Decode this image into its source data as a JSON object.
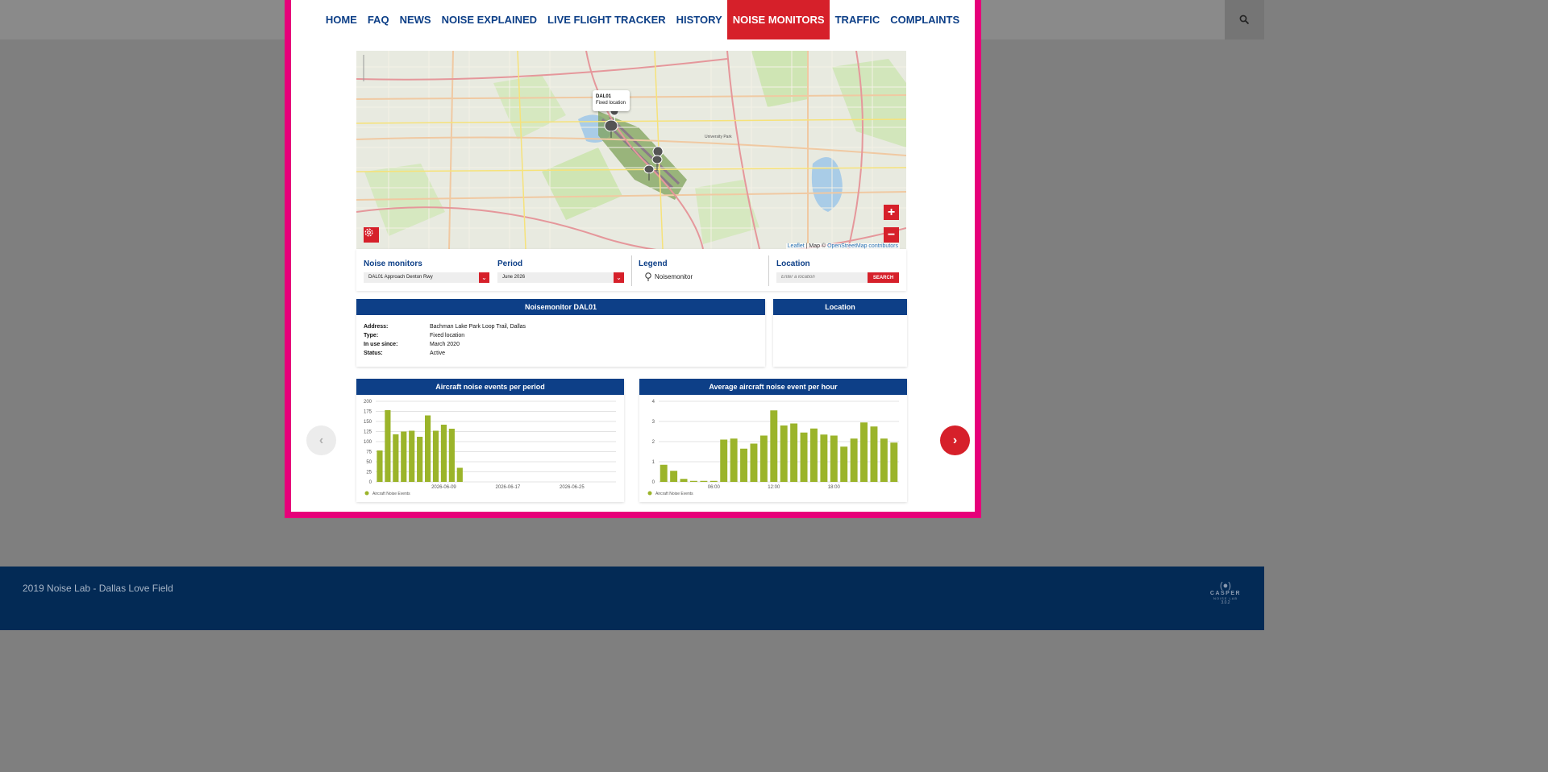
{
  "nav": {
    "items": [
      {
        "label": "HOME"
      },
      {
        "label": "FAQ"
      },
      {
        "label": "NEWS"
      },
      {
        "label": "NOISE EXPLAINED"
      },
      {
        "label": "LIVE FLIGHT TRACKER"
      },
      {
        "label": "HISTORY"
      },
      {
        "label": "NOISE MONITORS",
        "active": true
      },
      {
        "label": "TRAFFIC"
      },
      {
        "label": "COMPLAINTS"
      }
    ],
    "search_icon": "search-icon"
  },
  "map": {
    "popup": {
      "title": "DAL01",
      "subtitle": "Fixed location"
    },
    "zoom_in": "+",
    "zoom_out": "−",
    "attribution": {
      "leaflet": "Leaflet",
      "sep": " | Map © ",
      "osm": "OpenStreetMap contributors"
    },
    "place_label": "University Park"
  },
  "controls": {
    "monitors_label": "Noise monitors",
    "monitors_value": "DAL01 Approach Denton Rwy",
    "period_label": "Period",
    "period_value": "June 2026",
    "legend_label": "Legend",
    "legend_item": "Noisemonitor",
    "location_label": "Location",
    "location_placeholder": "Enter a location",
    "search_button": "SEARCH"
  },
  "monitor_card": {
    "title": "Noisemonitor DAL01",
    "rows": [
      {
        "key": "Address:",
        "value": "Bachman Lake Park Loop Trail, Dallas"
      },
      {
        "key": "Type:",
        "value": "Fixed location"
      },
      {
        "key": "In use since:",
        "value": "March 2020"
      },
      {
        "key": "Status:",
        "value": "Active"
      }
    ]
  },
  "location_card": {
    "title": "Location"
  },
  "chart_data": [
    {
      "type": "bar",
      "title": "Aircraft noise events per period",
      "xlabel": "",
      "ylabel": "",
      "ylim": [
        0,
        200
      ],
      "yticks": [
        0,
        25,
        50,
        75,
        100,
        125,
        150,
        175,
        200
      ],
      "x_tick_labels": [
        "2026-06-09",
        "2026-06-17",
        "2026-06-25"
      ],
      "x_tick_index": [
        9,
        17,
        25
      ],
      "categories": [
        "2026-06-01",
        "2026-06-02",
        "2026-06-03",
        "2026-06-04",
        "2026-06-05",
        "2026-06-06",
        "2026-06-07",
        "2026-06-08",
        "2026-06-09",
        "2026-06-10",
        "2026-06-11",
        "2026-06-12",
        "2026-06-13",
        "2026-06-14",
        "2026-06-15",
        "2026-06-16",
        "2026-06-17",
        "2026-06-18",
        "2026-06-19",
        "2026-06-20",
        "2026-06-21",
        "2026-06-22",
        "2026-06-23",
        "2026-06-24",
        "2026-06-25",
        "2026-06-26",
        "2026-06-27",
        "2026-06-28",
        "2026-06-29",
        "2026-06-30"
      ],
      "series": [
        {
          "name": "Aircraft Noise Events",
          "values": [
            78,
            178,
            118,
            125,
            127,
            112,
            165,
            127,
            142,
            132,
            35,
            0,
            0,
            0,
            0,
            0,
            0,
            0,
            0,
            0,
            0,
            0,
            0,
            0,
            0,
            0,
            0,
            0,
            0,
            0
          ]
        }
      ],
      "color": "#9bb42a",
      "legend_position": "bottom-left"
    },
    {
      "type": "bar",
      "title": "Average aircraft noise event per hour",
      "xlabel": "",
      "ylabel": "",
      "ylim": [
        0,
        4
      ],
      "yticks": [
        0,
        1,
        2,
        3,
        4
      ],
      "x_tick_labels": [
        "06:00",
        "12:00",
        "18:00"
      ],
      "x_tick_index": [
        6,
        12,
        18
      ],
      "categories": [
        "00",
        "01",
        "02",
        "03",
        "04",
        "05",
        "06",
        "07",
        "08",
        "09",
        "10",
        "11",
        "12",
        "13",
        "14",
        "15",
        "16",
        "17",
        "18",
        "19",
        "20",
        "21",
        "22",
        "23"
      ],
      "series": [
        {
          "name": "Aircraft Noise Events",
          "values": [
            0.85,
            0.55,
            0.15,
            0.05,
            0.05,
            0.05,
            2.1,
            2.15,
            1.65,
            1.9,
            2.3,
            3.55,
            2.8,
            2.9,
            2.45,
            2.65,
            2.35,
            2.3,
            1.75,
            2.15,
            2.95,
            2.75,
            2.15,
            1.95
          ]
        }
      ],
      "color": "#9bb42a",
      "legend_position": "bottom-left"
    }
  ],
  "footer": {
    "copyright": "2019 Noise Lab - Dallas Love Field",
    "brand_symbol": "(●)",
    "brand_name": "CASPER",
    "brand_sub": "NOISE LAB",
    "brand_version": "3.0.2"
  }
}
